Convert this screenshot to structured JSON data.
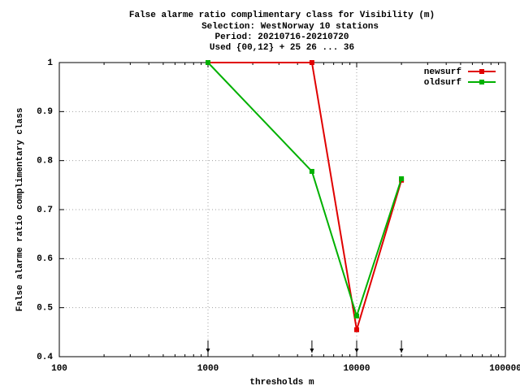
{
  "chart_data": {
    "type": "line",
    "title": "False alarme ratio complimentary class  for Visibility (m)",
    "subtitle": [
      "Selection: WestNorway     10 stations",
      "Period: 20210716-20210720",
      "Used {00,12} + 25 26 ... 36"
    ],
    "x_label": "thresholds m",
    "y_label": "False alarme ratio complimentary class",
    "x": [
      1000,
      5000,
      10000,
      20000
    ],
    "series": [
      {
        "name": "newsurf",
        "color": "#e00000",
        "values": [
          1.0,
          1.0,
          0.455,
          0.76
        ]
      },
      {
        "name": "oldsurf",
        "color": "#00b000",
        "values": [
          1.0,
          0.778,
          0.483,
          0.763
        ]
      }
    ],
    "xlim": [
      100,
      100000
    ],
    "xticks": [
      100,
      1000,
      10000,
      100000
    ],
    "x_log": true,
    "ylim": [
      0.4,
      1
    ],
    "yticks": [
      0.4,
      0.5,
      0.6,
      0.7,
      0.8,
      0.9,
      1
    ],
    "grid": true,
    "legend": "top-right"
  }
}
